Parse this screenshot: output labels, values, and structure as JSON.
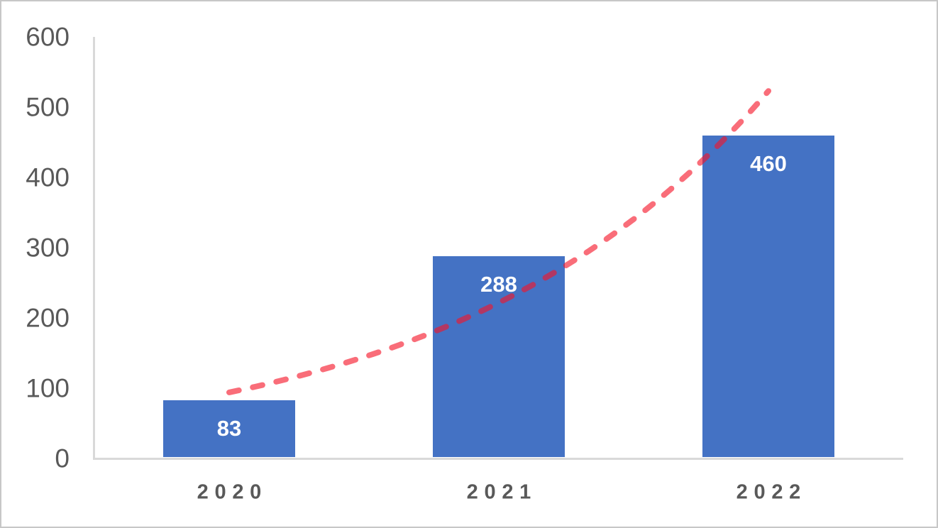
{
  "chart_data": {
    "type": "bar",
    "title": "",
    "categories": [
      "2020",
      "2021",
      "2022"
    ],
    "values": [
      83,
      288,
      460
    ],
    "data_labels": [
      "83",
      "288",
      "460"
    ],
    "y_axis": {
      "tick_labels": [
        "0",
        "100",
        "200",
        "300",
        "400",
        "500",
        "600"
      ],
      "ticks": [
        0,
        100,
        200,
        300,
        400,
        500,
        600
      ],
      "range": [
        0,
        600
      ],
      "label_color": "#595959"
    },
    "x_axis": {
      "label_color": "#595959"
    },
    "ylim": [
      0,
      600
    ],
    "grid": "off",
    "legend": "none",
    "colors": {
      "bar_fill": "#4472C4",
      "data_label": "#FFFFFF",
      "axis_line": "#D9D9D9",
      "trendline_on_white": "#FA7173",
      "trendline_on_bar": "#B23553"
    },
    "trendline": {
      "type": "exponential",
      "line_style": "dashed",
      "start_value": 94,
      "end_value": 523
    }
  }
}
